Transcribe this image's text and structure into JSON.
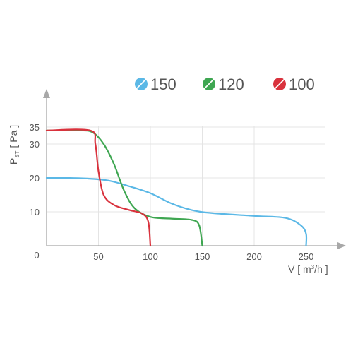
{
  "chart_data": {
    "type": "line",
    "title": "",
    "xlabel": "V [ m³/h ]",
    "ylabel": "P ST [ Pa ]",
    "xlabel_parts": {
      "main": "V [ m",
      "sup": "3",
      "tail": "/h ]"
    },
    "ylabel_parts": {
      "main": "P",
      "sub": "ST",
      "tail": "[ Pa ]"
    },
    "xlim": [
      0,
      280
    ],
    "ylim": [
      0,
      38
    ],
    "x_ticks": [
      0,
      50,
      100,
      150,
      200,
      250
    ],
    "y_ticks": [
      10,
      20,
      30,
      35
    ],
    "grid": true,
    "legend_position": "top-right",
    "series": [
      {
        "name": "150",
        "color": "#5bb8e6",
        "points": [
          [
            0,
            20
          ],
          [
            20,
            20
          ],
          [
            40,
            19.8
          ],
          [
            60,
            19.2
          ],
          [
            80,
            17.5
          ],
          [
            100,
            15.5
          ],
          [
            120,
            12.5
          ],
          [
            140,
            10.5
          ],
          [
            160,
            9.6
          ],
          [
            200,
            8.8
          ],
          [
            230,
            8.2
          ],
          [
            245,
            6
          ],
          [
            250,
            3.5
          ],
          [
            250,
            0
          ]
        ]
      },
      {
        "name": "120",
        "color": "#3ea651",
        "points": [
          [
            0,
            34
          ],
          [
            30,
            34
          ],
          [
            44,
            33.5
          ],
          [
            55,
            30
          ],
          [
            65,
            24
          ],
          [
            75,
            16
          ],
          [
            85,
            11
          ],
          [
            100,
            8.5
          ],
          [
            120,
            8
          ],
          [
            140,
            7.6
          ],
          [
            147,
            6
          ],
          [
            150,
            0
          ]
        ]
      },
      {
        "name": "100",
        "color": "#d9323d",
        "points": [
          [
            0,
            34
          ],
          [
            42,
            34
          ],
          [
            47,
            30
          ],
          [
            50,
            22
          ],
          [
            55,
            15
          ],
          [
            65,
            12
          ],
          [
            80,
            10.5
          ],
          [
            92,
            9.5
          ],
          [
            98,
            7
          ],
          [
            100,
            0
          ]
        ]
      }
    ]
  }
}
